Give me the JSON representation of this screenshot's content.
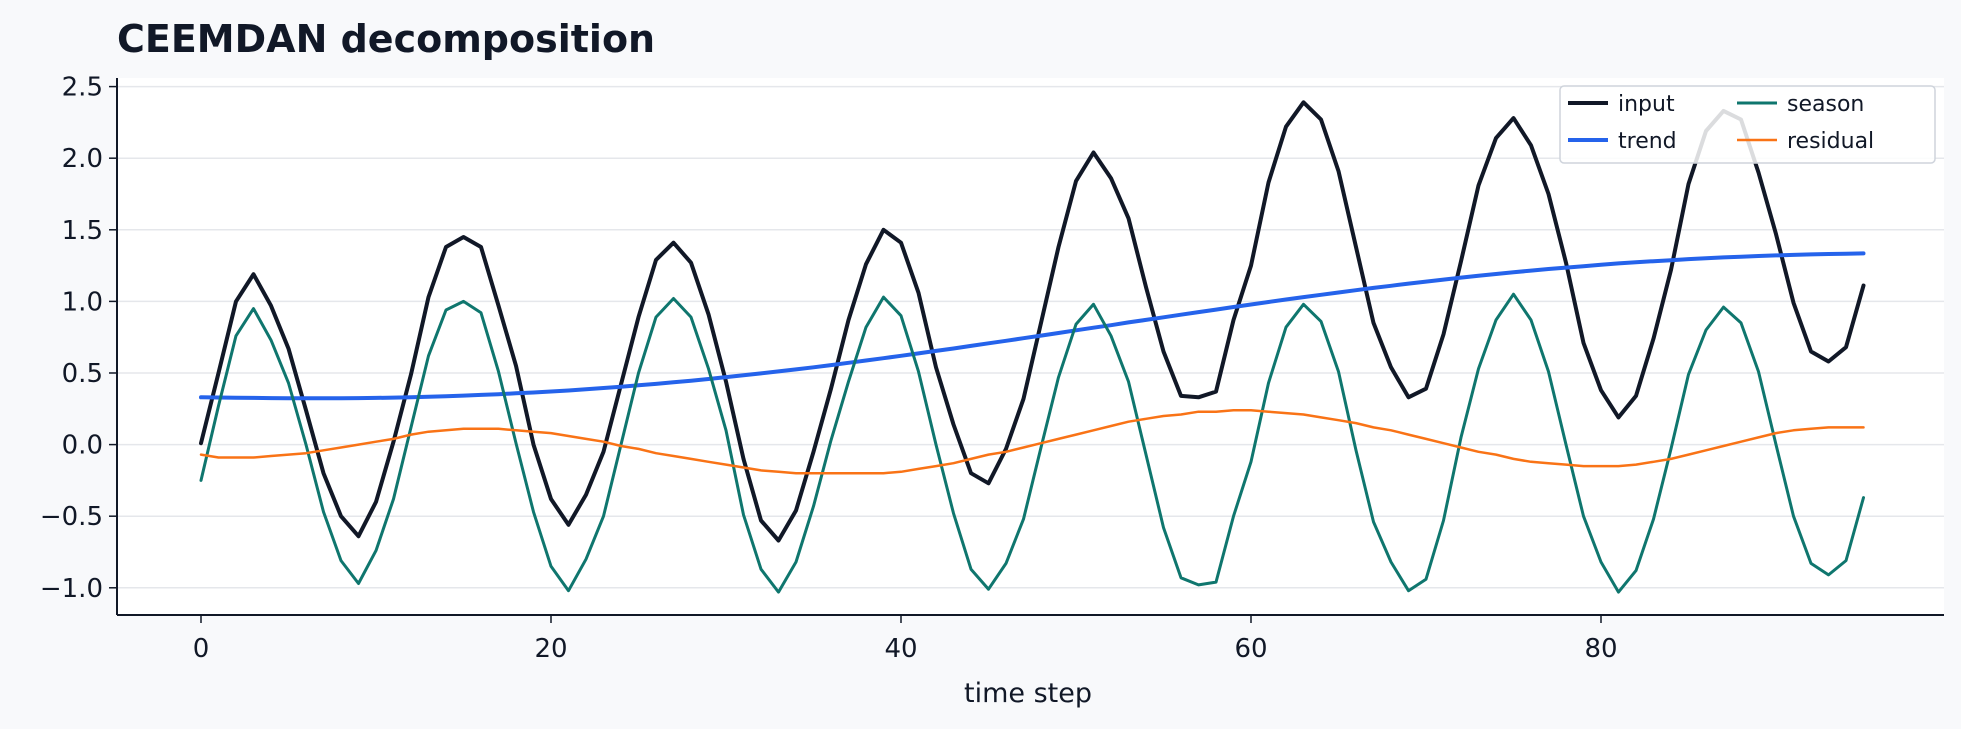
{
  "chart_data": {
    "type": "line",
    "title": "CEEMDAN decomposition",
    "xlabel": "time step",
    "ylabel": "",
    "xlim": [
      -4.8,
      99.6
    ],
    "ylim": [
      -1.19,
      2.56
    ],
    "xticks": [
      0,
      20,
      40,
      60,
      80
    ],
    "yticks": [
      -1.0,
      -0.5,
      0.0,
      0.5,
      1.0,
      1.5,
      2.0,
      2.5
    ],
    "ytick_labels": [
      "−1.0",
      "−0.5",
      "0.0",
      "0.5",
      "1.0",
      "1.5",
      "2.0",
      "2.5"
    ],
    "grid": "horizontal",
    "legend_position": "top-right",
    "x": [
      0,
      1,
      2,
      3,
      4,
      5,
      6,
      7,
      8,
      9,
      10,
      11,
      12,
      13,
      14,
      15,
      16,
      17,
      18,
      19,
      20,
      21,
      22,
      23,
      24,
      25,
      26,
      27,
      28,
      29,
      30,
      31,
      32,
      33,
      34,
      35,
      36,
      37,
      38,
      39,
      40,
      41,
      42,
      43,
      44,
      45,
      46,
      47,
      48,
      49,
      50,
      51,
      52,
      53,
      54,
      55,
      56,
      57,
      58,
      59,
      60,
      61,
      62,
      63,
      64,
      65,
      66,
      67,
      68,
      69,
      70,
      71,
      72,
      73,
      74,
      75,
      76,
      77,
      78,
      79,
      80,
      81,
      82,
      83,
      84,
      85,
      86,
      87,
      88,
      89,
      90,
      91,
      92,
      93,
      94,
      95
    ],
    "series": [
      {
        "name": "input",
        "color": "#111827",
        "width": 4,
        "values": [
          0.01,
          0.5,
          1.0,
          1.19,
          0.97,
          0.67,
          0.24,
          -0.2,
          -0.5,
          -0.64,
          -0.4,
          0.02,
          0.49,
          1.03,
          1.38,
          1.45,
          1.38,
          0.97,
          0.55,
          0.0,
          -0.38,
          -0.56,
          -0.35,
          -0.05,
          0.42,
          0.89,
          1.29,
          1.41,
          1.27,
          0.91,
          0.44,
          -0.1,
          -0.53,
          -0.67,
          -0.46,
          -0.05,
          0.39,
          0.87,
          1.26,
          1.5,
          1.41,
          1.06,
          0.54,
          0.14,
          -0.2,
          -0.27,
          -0.03,
          0.32,
          0.85,
          1.38,
          1.84,
          2.04,
          1.86,
          1.58,
          1.1,
          0.65,
          0.34,
          0.33,
          0.37,
          0.87,
          1.25,
          1.83,
          2.22,
          2.39,
          2.27,
          1.91,
          1.38,
          0.85,
          0.54,
          0.33,
          0.39,
          0.77,
          1.28,
          1.81,
          2.14,
          2.28,
          2.09,
          1.75,
          1.27,
          0.71,
          0.38,
          0.19,
          0.34,
          0.74,
          1.22,
          1.82,
          2.19,
          2.33,
          2.27,
          1.9,
          1.47,
          0.99,
          0.65,
          0.58,
          0.68,
          1.11
        ]
      },
      {
        "name": "trend",
        "color": "#2563eb",
        "width": 4,
        "values": [
          0.33,
          0.329,
          0.327,
          0.326,
          0.325,
          0.324,
          0.324,
          0.324,
          0.324,
          0.325,
          0.326,
          0.328,
          0.331,
          0.334,
          0.338,
          0.342,
          0.347,
          0.352,
          0.358,
          0.364,
          0.371,
          0.378,
          0.386,
          0.395,
          0.404,
          0.414,
          0.424,
          0.435,
          0.446,
          0.458,
          0.471,
          0.484,
          0.497,
          0.511,
          0.525,
          0.54,
          0.555,
          0.571,
          0.587,
          0.603,
          0.62,
          0.637,
          0.654,
          0.671,
          0.689,
          0.707,
          0.725,
          0.743,
          0.761,
          0.779,
          0.798,
          0.816,
          0.834,
          0.853,
          0.871,
          0.889,
          0.907,
          0.925,
          0.943,
          0.961,
          0.978,
          0.996,
          1.013,
          1.03,
          1.046,
          1.062,
          1.078,
          1.094,
          1.109,
          1.124,
          1.138,
          1.152,
          1.166,
          1.179,
          1.191,
          1.203,
          1.215,
          1.226,
          1.236,
          1.246,
          1.256,
          1.265,
          1.273,
          1.281,
          1.288,
          1.295,
          1.301,
          1.307,
          1.312,
          1.317,
          1.321,
          1.325,
          1.328,
          1.331,
          1.333,
          1.335
        ]
      },
      {
        "name": "season",
        "color": "#0f766e",
        "width": 3,
        "values": [
          -0.25,
          0.27,
          0.76,
          0.95,
          0.73,
          0.43,
          0.0,
          -0.47,
          -0.81,
          -0.97,
          -0.74,
          -0.38,
          0.12,
          0.62,
          0.94,
          1.0,
          0.92,
          0.51,
          0.01,
          -0.47,
          -0.85,
          -1.02,
          -0.8,
          -0.5,
          -0.0,
          0.5,
          0.89,
          1.02,
          0.89,
          0.53,
          0.1,
          -0.49,
          -0.87,
          -1.03,
          -0.82,
          -0.43,
          0.03,
          0.44,
          0.82,
          1.03,
          0.9,
          0.51,
          -0.0,
          -0.48,
          -0.87,
          -1.01,
          -0.83,
          -0.52,
          -0.02,
          0.47,
          0.84,
          0.98,
          0.76,
          0.44,
          -0.07,
          -0.58,
          -0.93,
          -0.98,
          -0.96,
          -0.5,
          -0.12,
          0.43,
          0.82,
          0.98,
          0.86,
          0.51,
          -0.04,
          -0.54,
          -0.82,
          -1.02,
          -0.94,
          -0.53,
          0.05,
          0.53,
          0.87,
          1.05,
          0.87,
          0.51,
          0.0,
          -0.5,
          -0.82,
          -1.03,
          -0.88,
          -0.52,
          -0.03,
          0.49,
          0.8,
          0.96,
          0.85,
          0.51,
          0.0,
          -0.5,
          -0.83,
          -0.91,
          -0.81,
          -0.37
        ]
      },
      {
        "name": "residual",
        "color": "#f97316",
        "width": 2.5,
        "values": [
          -0.07,
          -0.09,
          -0.09,
          -0.09,
          -0.08,
          -0.07,
          -0.06,
          -0.04,
          -0.02,
          -0.0,
          0.02,
          0.04,
          0.07,
          0.09,
          0.1,
          0.11,
          0.11,
          0.11,
          0.1,
          0.09,
          0.08,
          0.06,
          0.04,
          0.02,
          -0.01,
          -0.03,
          -0.06,
          -0.08,
          -0.1,
          -0.12,
          -0.14,
          -0.16,
          -0.18,
          -0.19,
          -0.2,
          -0.2,
          -0.2,
          -0.2,
          -0.2,
          -0.2,
          -0.19,
          -0.17,
          -0.15,
          -0.13,
          -0.1,
          -0.07,
          -0.05,
          -0.02,
          0.01,
          0.04,
          0.07,
          0.1,
          0.13,
          0.16,
          0.18,
          0.2,
          0.21,
          0.23,
          0.23,
          0.24,
          0.24,
          0.23,
          0.22,
          0.21,
          0.19,
          0.17,
          0.15,
          0.12,
          0.1,
          0.07,
          0.04,
          0.01,
          -0.02,
          -0.05,
          -0.07,
          -0.1,
          -0.12,
          -0.13,
          -0.14,
          -0.15,
          -0.15,
          -0.15,
          -0.14,
          -0.12,
          -0.1,
          -0.07,
          -0.04,
          -0.01,
          0.02,
          0.05,
          0.08,
          0.1,
          0.11,
          0.12,
          0.12,
          0.12
        ]
      }
    ]
  }
}
